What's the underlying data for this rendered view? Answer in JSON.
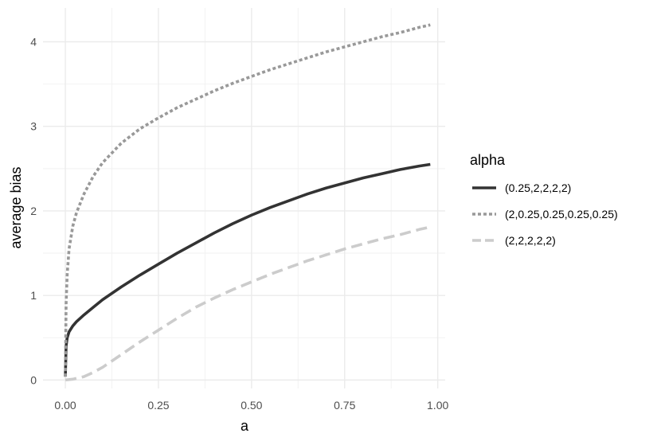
{
  "chart_data": {
    "type": "line",
    "xlabel": "a",
    "ylabel": "average bias",
    "xlim": [
      -0.06,
      1.02
    ],
    "ylim": [
      -0.1,
      4.4
    ],
    "x_ticks": [
      0.0,
      0.25,
      0.5,
      0.75,
      1.0
    ],
    "x_tick_labels": [
      "0.00",
      "0.25",
      "0.50",
      "0.75",
      "1.00"
    ],
    "y_ticks": [
      0,
      1,
      2,
      3,
      4
    ],
    "y_tick_labels": [
      "0",
      "1",
      "2",
      "3",
      "4"
    ],
    "grid": true,
    "legend": {
      "title": "alpha",
      "position": "right"
    },
    "series": [
      {
        "name": "(0.25,2,2,2,2)",
        "color": "#333333",
        "dash": "solid",
        "x": [
          0.0,
          0.002,
          0.005,
          0.01,
          0.02,
          0.03,
          0.05,
          0.075,
          0.1,
          0.15,
          0.2,
          0.25,
          0.3,
          0.35,
          0.4,
          0.45,
          0.5,
          0.55,
          0.6,
          0.65,
          0.7,
          0.75,
          0.8,
          0.85,
          0.9,
          0.95,
          0.98
        ],
        "y": [
          0.04,
          0.4,
          0.5,
          0.57,
          0.64,
          0.69,
          0.77,
          0.86,
          0.95,
          1.1,
          1.24,
          1.37,
          1.5,
          1.62,
          1.74,
          1.85,
          1.95,
          2.04,
          2.12,
          2.2,
          2.27,
          2.33,
          2.39,
          2.44,
          2.49,
          2.53,
          2.55
        ]
      },
      {
        "name": "(2,0.25,0.25,0.25,0.25)",
        "color": "#999999",
        "dash": "dotted",
        "x": [
          0.0,
          0.002,
          0.005,
          0.01,
          0.02,
          0.03,
          0.05,
          0.075,
          0.1,
          0.15,
          0.2,
          0.25,
          0.3,
          0.35,
          0.4,
          0.45,
          0.5,
          0.55,
          0.6,
          0.65,
          0.7,
          0.75,
          0.8,
          0.85,
          0.9,
          0.95,
          0.98
        ],
        "y": [
          0.04,
          0.9,
          1.25,
          1.55,
          1.82,
          1.98,
          2.2,
          2.41,
          2.57,
          2.8,
          2.97,
          3.1,
          3.22,
          3.32,
          3.42,
          3.51,
          3.59,
          3.67,
          3.74,
          3.81,
          3.88,
          3.94,
          4.0,
          4.06,
          4.11,
          4.17,
          4.2
        ]
      },
      {
        "name": "(2,2,2,2,2)",
        "color": "#cccccc",
        "dash": "dashed",
        "x": [
          0.0,
          0.02,
          0.05,
          0.075,
          0.1,
          0.15,
          0.2,
          0.25,
          0.3,
          0.35,
          0.4,
          0.45,
          0.5,
          0.55,
          0.6,
          0.65,
          0.7,
          0.75,
          0.8,
          0.85,
          0.9,
          0.95,
          0.98
        ],
        "y": [
          0.0,
          0.01,
          0.04,
          0.09,
          0.15,
          0.3,
          0.45,
          0.59,
          0.73,
          0.86,
          0.97,
          1.07,
          1.16,
          1.25,
          1.33,
          1.41,
          1.48,
          1.55,
          1.61,
          1.67,
          1.72,
          1.78,
          1.81
        ]
      }
    ]
  }
}
